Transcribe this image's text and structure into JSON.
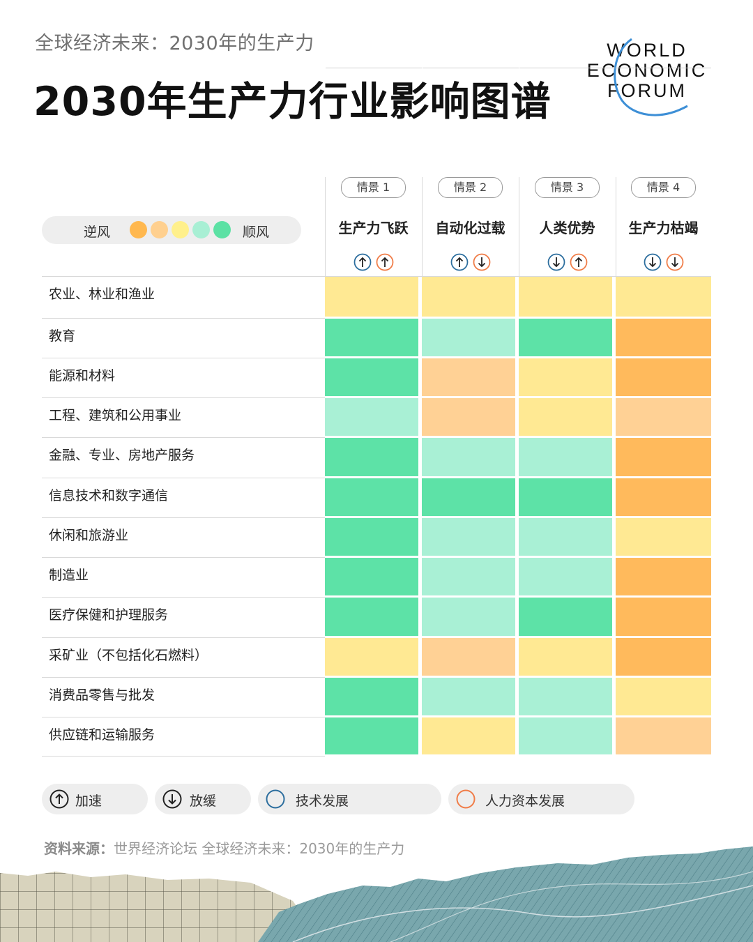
{
  "header": {
    "subtitle": "全球经济未来：2030年的生产力",
    "title": "2030年生产力行业影响图谱",
    "logo_lines": [
      "WORLD",
      "ECONOMIC",
      "FORUM"
    ]
  },
  "wind_legend": {
    "left": "逆风",
    "right": "顺风",
    "scale": [
      "#ffb84f",
      "#ffd08f",
      "#fff08c",
      "#a8efd4",
      "#5ce1a4"
    ]
  },
  "scenarios": [
    {
      "tag": "情景 1",
      "name": "生产力飞跃",
      "icons": [
        "up-tech",
        "up-human"
      ]
    },
    {
      "tag": "情景 2",
      "name": "自动化过载",
      "icons": [
        "up-tech",
        "down-human"
      ]
    },
    {
      "tag": "情景 3",
      "name": "人类优势",
      "icons": [
        "down-tech",
        "up-human"
      ]
    },
    {
      "tag": "情景 4",
      "name": "生产力枯竭",
      "icons": [
        "down-tech",
        "down-human"
      ]
    }
  ],
  "colors": {
    "tech": "#2c6e9e",
    "human": "#f07c47",
    "ink": "#222222",
    "levels": {
      "1": "#ffba5c",
      "2": "#ffd195",
      "3": "#ffe993",
      "4": "#a9f0d5",
      "5": "#5de2a7"
    }
  },
  "chart_data": {
    "type": "heatmap",
    "scale": "1 = 逆风 … 5 = 顺风",
    "columns": [
      "生产力飞跃",
      "自动化过载",
      "人类优势",
      "生产力枯竭"
    ],
    "rows": [
      {
        "label": "农业、林业和渔业",
        "values": [
          3,
          3,
          3,
          3
        ]
      },
      {
        "label": "教育",
        "values": [
          5,
          4,
          5,
          1
        ]
      },
      {
        "label": "能源和材料",
        "values": [
          5,
          2,
          3,
          1
        ]
      },
      {
        "label": "工程、建筑和公用事业",
        "values": [
          4,
          2,
          3,
          2
        ]
      },
      {
        "label": "金融、专业、房地产服务",
        "values": [
          5,
          4,
          4,
          1
        ]
      },
      {
        "label": "信息技术和数字通信",
        "values": [
          5,
          5,
          5,
          1
        ]
      },
      {
        "label": "休闲和旅游业",
        "values": [
          5,
          4,
          4,
          3
        ]
      },
      {
        "label": "制造业",
        "values": [
          5,
          4,
          4,
          1
        ]
      },
      {
        "label": "医疗保健和护理服务",
        "values": [
          5,
          4,
          5,
          1
        ]
      },
      {
        "label": "采矿业（不包括化石燃料）",
        "values": [
          3,
          2,
          3,
          1
        ]
      },
      {
        "label": "消费品零售与批发",
        "values": [
          5,
          4,
          4,
          3
        ]
      },
      {
        "label": "供应链和运输服务",
        "values": [
          5,
          3,
          4,
          2
        ]
      }
    ]
  },
  "bottom_legend": {
    "accelerate": "加速",
    "slow": "放缓",
    "tech": "技术发展",
    "human": "人力资本发展"
  },
  "source": {
    "label": "资料来源：",
    "text": "世界经济论坛 全球经济未来：2030年的生产力"
  }
}
